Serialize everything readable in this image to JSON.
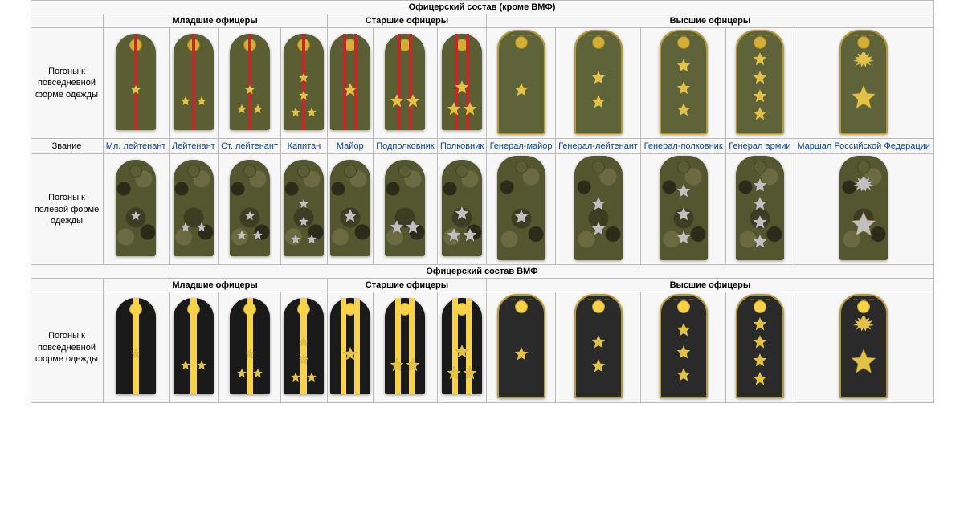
{
  "colors": {
    "olive": "#5a5e32",
    "olive_general": "#5f633a",
    "camo_button": "#5a5e32",
    "navy": "#1a1a1a",
    "navy_general": "#2a2a2a",
    "gold": "#d4af37",
    "gold_star": "#e2c14a",
    "silver_star": "#c0c0c0",
    "red_stripe": "#c62828",
    "yellow_stripe": "#f8d34a",
    "gold_button": "#d4af37",
    "yellow_button": "#f8d34a",
    "embroid_gold": "#b59a3a",
    "border": "#aaaaaa",
    "header_bg": "#f0f0f0"
  },
  "main_title": "Офицерский состав (кроме ВМФ)",
  "navy_title": "Офицерский состав ВМФ",
  "group_headers": {
    "junior": "Младшие офицеры",
    "senior": "Старшие офицеры",
    "supreme": "Высшие офицеры"
  },
  "row_labels": {
    "everyday": "Погоны к повседневной форме одежды",
    "rank": "Звание",
    "field": "Погоны к полевой форме одежды"
  },
  "ranks": [
    {
      "key": "ml_lt",
      "label": "Мл. лейтенант",
      "group": "junior",
      "stars": [
        [
          50,
          58
        ]
      ],
      "stripe": {
        "count": 1,
        "thin": true
      }
    },
    {
      "key": "lt",
      "label": "Лейтенант",
      "group": "junior",
      "stars": [
        [
          30,
          70
        ],
        [
          70,
          70
        ]
      ],
      "stripe": {
        "count": 1,
        "thin": true
      }
    },
    {
      "key": "st_lt",
      "label": "Ст. лейтенант",
      "group": "junior",
      "stars": [
        [
          30,
          78
        ],
        [
          70,
          78
        ],
        [
          50,
          58
        ]
      ],
      "stripe": {
        "count": 1,
        "thin": true
      }
    },
    {
      "key": "kapitan",
      "label": "Капитан",
      "group": "junior",
      "stars": [
        [
          30,
          82
        ],
        [
          70,
          82
        ],
        [
          50,
          64
        ],
        [
          50,
          46
        ]
      ],
      "stripe": {
        "count": 1,
        "thin": true
      }
    },
    {
      "key": "major",
      "label": "Майор",
      "group": "senior",
      "stars": [
        [
          50,
          58
        ]
      ],
      "stripe": {
        "count": 2,
        "thin": true
      },
      "big_star": true
    },
    {
      "key": "podpolk",
      "label": "Подполковник",
      "group": "senior",
      "stars": [
        [
          30,
          70
        ],
        [
          70,
          70
        ]
      ],
      "stripe": {
        "count": 2,
        "thin": true
      },
      "big_star": true
    },
    {
      "key": "polk",
      "label": "Полковник",
      "group": "senior",
      "stars": [
        [
          30,
          78
        ],
        [
          70,
          78
        ],
        [
          50,
          56
        ]
      ],
      "stripe": {
        "count": 2,
        "thin": true
      },
      "big_star": true
    },
    {
      "key": "gen_major",
      "label": "Генерал-майор",
      "group": "supreme",
      "stars": [
        [
          50,
          58
        ]
      ],
      "general": true
    },
    {
      "key": "gen_lt",
      "label": "Генерал-лейтенант",
      "group": "supreme",
      "stars": [
        [
          50,
          70
        ],
        [
          50,
          46
        ]
      ],
      "general": true
    },
    {
      "key": "gen_polk",
      "label": "Генерал-полковник",
      "group": "supreme",
      "stars": [
        [
          50,
          78
        ],
        [
          50,
          56
        ],
        [
          50,
          34
        ]
      ],
      "general": true
    },
    {
      "key": "gen_army",
      "label": "Генерал армии",
      "group": "supreme",
      "stars": [
        [
          50,
          82
        ],
        [
          50,
          64
        ],
        [
          50,
          46
        ],
        [
          50,
          28
        ]
      ],
      "general": true
    },
    {
      "key": "marshal",
      "label": "Маршал Российской Федерации",
      "group": "supreme",
      "marshal": true,
      "general": true
    }
  ],
  "navy_junior_stripe": {
    "count": 1,
    "thin": false
  },
  "navy_senior_stripe": {
    "count": 2,
    "thin": false
  }
}
